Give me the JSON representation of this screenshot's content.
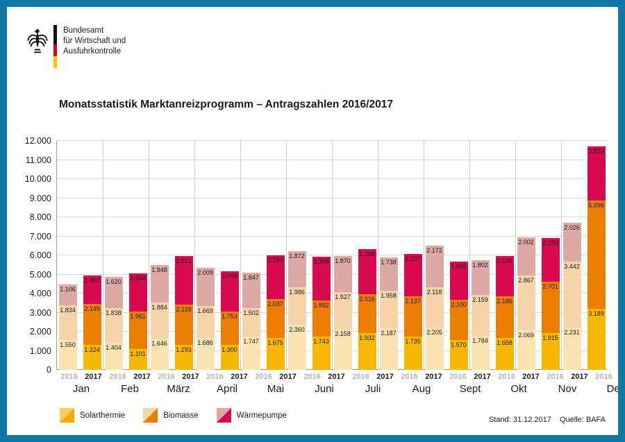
{
  "logo": {
    "lines": [
      "Bundesamt",
      "für Wirtschaft und",
      "Ausfuhrkontrolle"
    ]
  },
  "chart_data": {
    "type": "bar",
    "stacked": true,
    "grouped": true,
    "title": "Monatsstatistik Marktanreizprogramm – Antragszahlen 2016/2017",
    "categories": [
      "Jan",
      "Feb",
      "März",
      "April",
      "Mai",
      "Juni",
      "Juli",
      "Aug",
      "Sept",
      "Okt",
      "Nov",
      "Dez"
    ],
    "group_labels": [
      "2016",
      "2017"
    ],
    "components": [
      "Solarthermie",
      "Biomasse",
      "Wärmepumpe"
    ],
    "ylim": [
      0,
      12000
    ],
    "ytick_step": 1000,
    "yticklabels": [
      "0",
      "1.000",
      "2.000",
      "3.000",
      "4.000",
      "5.000",
      "6.000",
      "7.000",
      "8.000",
      "9.000",
      "10.000",
      "11.000",
      "12.000"
    ],
    "grid": true,
    "series": [
      {
        "name": "Solarthermie",
        "year": "2016",
        "values": [
          1550,
          1404,
          1646,
          1686,
          1747,
          2360,
          2158,
          2187,
          2205,
          1784,
          2069,
          2231
        ]
      },
      {
        "name": "Biomasse",
        "year": "2016",
        "values": [
          1834,
          1838,
          1884,
          1669,
          1502,
          1986,
          1927,
          1958,
          2118,
          2159,
          2867,
          3442
        ]
      },
      {
        "name": "Wärmepumpe",
        "year": "2016",
        "values": [
          1106,
          1620,
          1948,
          2009,
          1847,
          1872,
          1870,
          1738,
          2172,
          1802,
          2002,
          2026
        ]
      },
      {
        "name": "Solarthermie",
        "year": "2017",
        "values": [
          1324,
          1101,
          1293,
          1300,
          1675,
          1743,
          1932,
          1735,
          1570,
          1658,
          1915,
          3189
        ]
      },
      {
        "name": "Biomasse",
        "year": "2017",
        "values": [
          2149,
          1961,
          2139,
          1753,
          2037,
          1892,
          2016,
          2137,
          2100,
          2186,
          2701,
          5698
        ]
      },
      {
        "name": "Wärmepumpe",
        "year": "2017",
        "values": [
          1462,
          2004,
          2521,
          2099,
          2293,
          2308,
          2398,
          2207,
          1988,
          2106,
          2283,
          2822
        ]
      }
    ],
    "colors": {
      "solarthermie_2016": "#FBE3B1",
      "solarthermie_2017": "#F9B800",
      "biomasse_2016": "#F8D5A9",
      "biomasse_2017": "#EC7D00",
      "waermepumpe_2016": "#DCA9A5",
      "waermepumpe_2017": "#D7094F",
      "frame": "#1278A6",
      "grid": "#DADADA",
      "year_2016_label": "#B4B4B4"
    },
    "legend_position": "bottom-left"
  },
  "legend": {
    "items": [
      {
        "label": "Solarthermie",
        "light": "#FACC64",
        "dark": "#F6A800"
      },
      {
        "label": "Biomasse",
        "light": "#F8D5A9",
        "dark": "#EC7D00"
      },
      {
        "label": "Wärmepumpe",
        "light": "#DCA9A5",
        "dark": "#D7094F"
      }
    ]
  },
  "footer": {
    "stand": "Stand: 31.12.2017",
    "quelle": "Quelle: BAFA"
  }
}
